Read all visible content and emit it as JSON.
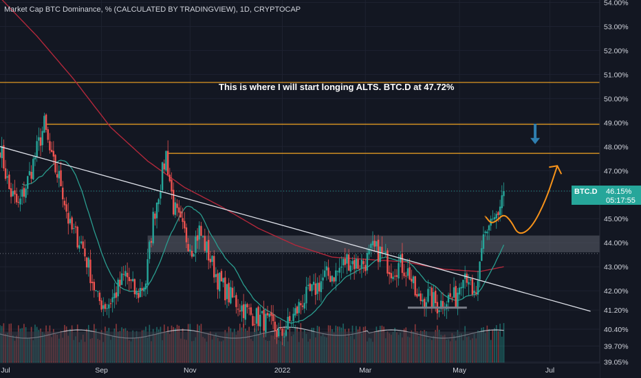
{
  "header": {
    "title": "Market Cap BTC Dominance, % (CALCULATED BY TRADINGVIEW), 1D, CRYPTOCAP"
  },
  "annotation": "This is where I will start longing ALTS. BTC.D at 47.72%",
  "price_tag": {
    "symbol": "BTC.D",
    "price": "46.15%",
    "countdown": "05:17:55"
  },
  "colors": {
    "background": "#131722",
    "grid": "#1e2230",
    "up": "#26a69a",
    "down": "#ef5350",
    "level_line": "#f5a623",
    "ma_red": "#b2283b",
    "ma_teal": "#2a9d8f",
    "volume_box": "#363a45",
    "arrow_down": "#2f7fb0",
    "arrow_path": "#f7931a",
    "text": "#d1d4dc"
  },
  "chart_data": {
    "type": "candlestick",
    "title": "Market Cap BTC Dominance, % (CALCULATED BY TRADINGVIEW), 1D, CRYPTOCAP",
    "y_range": [
      39.0,
      54.1
    ],
    "y_ticks": [
      "54.00%",
      "53.00%",
      "52.00%",
      "51.00%",
      "50.00%",
      "49.00%",
      "48.00%",
      "47.00%",
      "46.15%",
      "45.00%",
      "44.00%",
      "43.00%",
      "42.00%",
      "41.20%",
      "40.40%",
      "39.70%",
      "39.05%"
    ],
    "y_tick_values": [
      54.0,
      53.0,
      52.0,
      51.0,
      50.0,
      49.0,
      48.0,
      47.0,
      46.15,
      45.0,
      44.0,
      43.0,
      42.0,
      41.2,
      40.4,
      39.7,
      39.05
    ],
    "x_range": [
      0,
      325
    ],
    "x_ticks": [
      {
        "label": "Jul",
        "x": 3
      },
      {
        "label": "Sep",
        "x": 55
      },
      {
        "label": "Nov",
        "x": 103
      },
      {
        "label": "2022",
        "x": 153
      },
      {
        "label": "Mar",
        "x": 198
      },
      {
        "label": "May",
        "x": 249
      },
      {
        "label": "Jul",
        "x": 298
      }
    ],
    "anchors": [
      [
        0,
        48.0
      ],
      [
        5,
        46.2
      ],
      [
        10,
        45.5
      ],
      [
        16,
        46.8
      ],
      [
        24,
        48.9
      ],
      [
        28,
        47.4
      ],
      [
        33,
        46.5
      ],
      [
        38,
        44.6
      ],
      [
        44,
        44.0
      ],
      [
        48,
        43.0
      ],
      [
        53,
        41.6
      ],
      [
        58,
        41.4
      ],
      [
        62,
        41.8
      ],
      [
        68,
        42.7
      ],
      [
        74,
        41.8
      ],
      [
        79,
        42.4
      ],
      [
        83,
        45.0
      ],
      [
        87,
        46.5
      ],
      [
        90,
        47.7
      ],
      [
        94,
        45.5
      ],
      [
        99,
        44.5
      ],
      [
        104,
        43.8
      ],
      [
        108,
        44.5
      ],
      [
        113,
        43.5
      ],
      [
        118,
        42.5
      ],
      [
        124,
        41.8
      ],
      [
        130,
        41.4
      ],
      [
        136,
        41.0
      ],
      [
        142,
        40.8
      ],
      [
        148,
        40.5
      ],
      [
        152,
        40.1
      ],
      [
        158,
        40.8
      ],
      [
        164,
        41.6
      ],
      [
        170,
        42.0
      ],
      [
        176,
        42.6
      ],
      [
        182,
        42.7
      ],
      [
        188,
        43.3
      ],
      [
        194,
        43.1
      ],
      [
        198,
        43.2
      ],
      [
        202,
        43.7
      ],
      [
        206,
        43.6
      ],
      [
        212,
        42.9
      ],
      [
        217,
        43.1
      ],
      [
        222,
        42.7
      ],
      [
        226,
        41.6
      ],
      [
        232,
        41.8
      ],
      [
        237,
        41.4
      ],
      [
        243,
        41.7
      ],
      [
        247,
        41.7
      ],
      [
        251,
        42.9
      ],
      [
        254,
        42.6
      ],
      [
        256,
        41.6
      ],
      [
        259,
        42.1
      ],
      [
        262,
        44.2
      ],
      [
        266,
        45.0
      ],
      [
        270,
        45.0
      ],
      [
        273,
        46.15
      ]
    ],
    "levels": [
      {
        "name": "upper-level",
        "value": 50.67,
        "x_from": 0
      },
      {
        "name": "jul-high-level",
        "value": 48.93,
        "x_from": 25
      },
      {
        "name": "target-level",
        "value": 47.72,
        "x_from": 91
      }
    ],
    "zones": [
      {
        "name": "resistance-zone",
        "from": 43.6,
        "to": 44.3,
        "x_from": 80,
        "x_to": 325
      },
      {
        "name": "volume-base-zone",
        "from": 39.05,
        "to": 40.3,
        "x_from": 0,
        "x_to": 265
      }
    ],
    "trendline": {
      "x1": 0,
      "y1": 48.0,
      "x2": 320,
      "y2": 41.15
    },
    "support_line": {
      "value": 41.3,
      "x_from": 221,
      "x_to": 253
    },
    "projection": {
      "points": [
        [
          263,
          45.1
        ],
        [
          266,
          44.8
        ],
        [
          269,
          44.9
        ],
        [
          273,
          45.2
        ],
        [
          277,
          44.9
        ],
        [
          281,
          44.3
        ],
        [
          288,
          44.6
        ],
        [
          296,
          45.8
        ],
        [
          302,
          47.2
        ]
      ]
    },
    "down_arrow": {
      "x": 290,
      "from": 48.95,
      "to": 48.1
    }
  }
}
